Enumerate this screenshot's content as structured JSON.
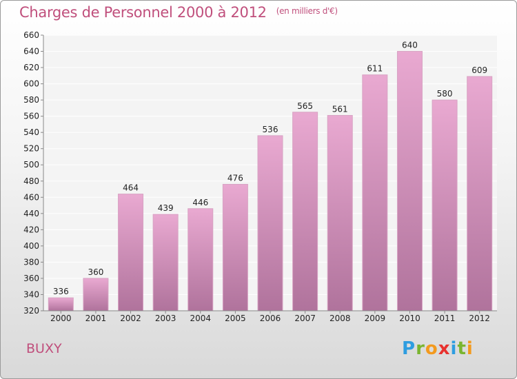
{
  "title": "Charges de Personnel 2000 à 2012",
  "subtitle": "(en milliers d'€)",
  "location": "BUXY",
  "logo": {
    "letters": [
      "P",
      "r",
      "o",
      "x",
      "i",
      "t",
      "i"
    ],
    "colors": [
      "#2e9de0",
      "#7ab530",
      "#f39a1e",
      "#e8322f",
      "#2e9de0",
      "#7ab530",
      "#f39a1e"
    ]
  },
  "colors": {
    "bar_top": "#e9a9d1",
    "bar_bottom": "#b0739c",
    "bar_edge": "#d8a3c3",
    "text": "#c04f7c",
    "axis": "#888888"
  },
  "chart_data": {
    "type": "bar",
    "title": "Charges de Personnel 2000 à 2012",
    "subtitle": "(en milliers d'€)",
    "xlabel": "",
    "ylabel": "",
    "categories": [
      "2000",
      "2001",
      "2002",
      "2003",
      "2004",
      "2005",
      "2006",
      "2007",
      "2008",
      "2009",
      "2010",
      "2011",
      "2012"
    ],
    "values": [
      336,
      360,
      464,
      439,
      446,
      476,
      536,
      565,
      561,
      611,
      640,
      580,
      609
    ],
    "ylim": [
      320,
      660
    ],
    "yticks": [
      320,
      340,
      360,
      380,
      400,
      420,
      440,
      460,
      480,
      500,
      520,
      540,
      560,
      580,
      600,
      620,
      640,
      660
    ],
    "grid": true,
    "legend": "none"
  }
}
